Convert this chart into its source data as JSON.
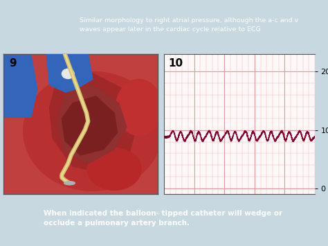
{
  "bg_color_top": "#c8d8e0",
  "bg_color_bottom": "#a8c0cc",
  "top_box_color": "#4a8aaa",
  "top_text": "Similar morphology to right atrial pressure, although the a-c and v\nwaves appear later in the cardiac cycle relative to ECG",
  "top_text_color": "#ffffff",
  "bottom_box_color": "#1a1a1a",
  "bottom_text": "When indicated the balloon- tipped catheter will wedge or\nocclude a pulmonary artery branch.",
  "bottom_text_color": "#ffffff",
  "label9": "9",
  "label10": "10",
  "grid_color_fine": "#f0b8b8",
  "grid_color_major": "#e09898",
  "waveform_color": "#800030",
  "waveform_baseline": 8.8,
  "yticks": [
    0,
    10,
    20
  ],
  "ylim": [
    -1,
    23
  ],
  "chart_bg": "#fff8f8",
  "panel_border_color": "#555555",
  "heart_bg": "#c84040",
  "heart_dark": "#a02020",
  "vessel_blue": "#3366bb",
  "vessel_blue2": "#2244aa",
  "catheter_outer": "#d4c070",
  "catheter_inner": "#e8d890",
  "tip_color": "#b0b0b0"
}
